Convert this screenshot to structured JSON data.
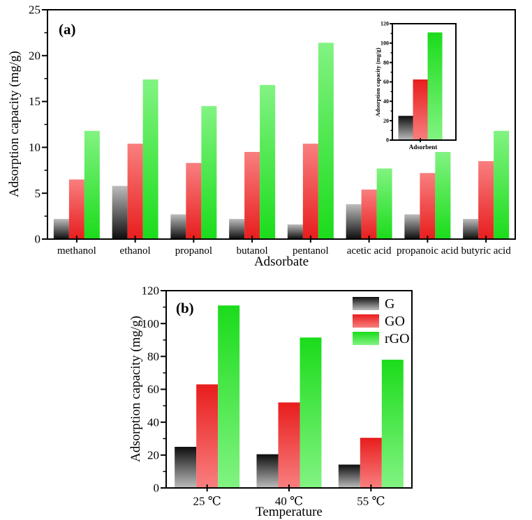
{
  "page": {
    "background": "#ffffff"
  },
  "chart_data": [
    {
      "id": "panel_a",
      "type": "bar",
      "panel_label": "(a)",
      "title": "",
      "xlabel": "Adsorbate",
      "ylabel": "Adsorption capacity (mg/g)",
      "ylim": [
        0,
        25
      ],
      "ytick_step": 5,
      "yminor_step": 2.5,
      "grid": false,
      "legend": null,
      "categories": [
        "methanol",
        "ethanol",
        "propanol",
        "butanol",
        "pentanol",
        "acetic acid",
        "propanoic acid",
        "butyric acid"
      ],
      "series": [
        {
          "name": "G",
          "values": [
            2.2,
            5.8,
            2.7,
            2.2,
            1.6,
            3.8,
            2.7,
            2.2
          ]
        },
        {
          "name": "GO",
          "values": [
            6.5,
            10.4,
            8.3,
            9.5,
            10.4,
            5.4,
            7.2,
            8.5
          ]
        },
        {
          "name": "rGO",
          "values": [
            11.8,
            17.4,
            14.5,
            16.8,
            21.4,
            7.7,
            9.5,
            11.8
          ]
        }
      ]
    },
    {
      "id": "panel_a_inset",
      "type": "bar",
      "panel_label": "",
      "title": "",
      "xlabel": "Adsorbent",
      "ylabel": "Adsorption  capacity (mg/g)",
      "ylim": [
        0,
        120
      ],
      "ytick_step": 20,
      "yminor_step": 10,
      "grid": false,
      "legend": null,
      "categories": [
        ""
      ],
      "series": [
        {
          "name": "G",
          "values": [
            25
          ]
        },
        {
          "name": "GO",
          "values": [
            62.5
          ]
        },
        {
          "name": "rGO",
          "values": [
            111
          ]
        }
      ]
    },
    {
      "id": "panel_b",
      "type": "bar",
      "panel_label": "(b)",
      "title": "",
      "xlabel": "Temperature",
      "ylabel": "Adsorption capacity (mg/g)",
      "ylim": [
        0,
        120
      ],
      "ytick_step": 20,
      "yminor_step": 10,
      "grid": false,
      "legend": {
        "position": "top-right",
        "entries": [
          "G",
          "GO",
          "rGO"
        ]
      },
      "categories": [
        "25 ℃",
        "40 ℃",
        "55 ℃"
      ],
      "series": [
        {
          "name": "G",
          "values": [
            25,
            20.5,
            14.2
          ]
        },
        {
          "name": "GO",
          "values": [
            63,
            52,
            30.5
          ]
        },
        {
          "name": "rGO",
          "values": [
            111,
            91.5,
            78
          ]
        }
      ]
    }
  ],
  "colors": {
    "G_dark": "#0d0d0d",
    "G_light": "#bdbdbd",
    "GO_dark": "#e81d1d",
    "GO_light": "#f97f7f",
    "rGO_dark": "#1bdc1b",
    "rGO_light": "#82f382",
    "axis": "#000000",
    "background": "#ffffff"
  }
}
